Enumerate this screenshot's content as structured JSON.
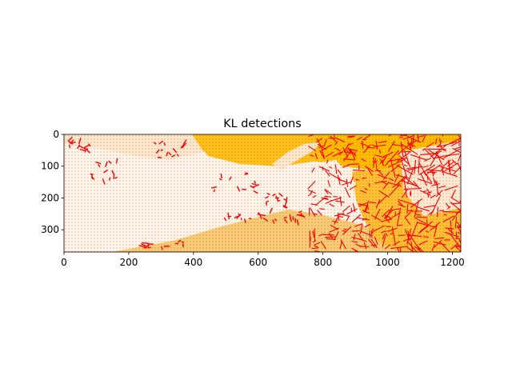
{
  "chart_data": {
    "type": "heatmap",
    "title": "KL detections",
    "xlabel": "",
    "ylabel": "",
    "xlim": [
      0,
      1226
    ],
    "ylim": [
      370,
      0
    ],
    "x_ticks": [
      0,
      200,
      400,
      600,
      800,
      1000,
      1200
    ],
    "y_ticks": [
      0,
      100,
      200,
      300
    ],
    "grid": false,
    "legend": "none",
    "colors": {
      "amber": "#ffbf00",
      "amber_light": "#ffcc33",
      "peach": "#f7d27a",
      "sand": "#f6cd74",
      "cream": "#fde9cd",
      "white_region": "#fff6ea",
      "vectors": "#ff0000",
      "dots": "#cc0000"
    },
    "description_overlay": "dense red quiver vectors over a background image; strong vectors concentrated in right third"
  }
}
